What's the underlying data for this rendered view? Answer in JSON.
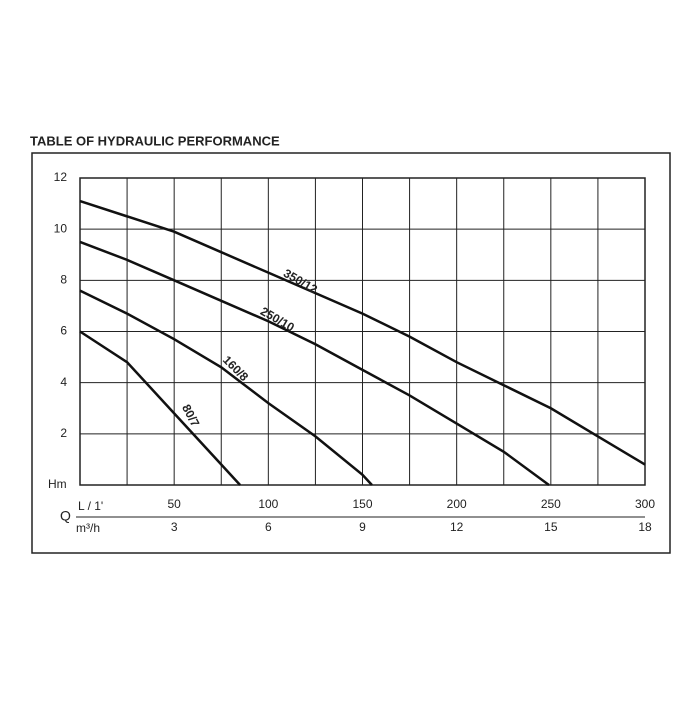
{
  "chart_data": {
    "type": "line",
    "title": "TABLE OF HYDRAULIC PERFORMANCE",
    "y_label": "Hm",
    "q_label": "Q",
    "x_label": "L / 1'",
    "x2_label": "m³/h",
    "xlim": [
      0,
      300
    ],
    "ylim": [
      0,
      12
    ],
    "xticks": [
      50,
      100,
      150,
      200,
      250,
      300
    ],
    "x2ticks": [
      {
        "value": 50,
        "label": "3"
      },
      {
        "value": 100,
        "label": "6"
      },
      {
        "value": 150,
        "label": "9"
      },
      {
        "value": 200,
        "label": "12"
      },
      {
        "value": 250,
        "label": "15"
      },
      {
        "value": 300,
        "label": "18"
      }
    ],
    "xgrid": [
      25,
      50,
      75,
      100,
      125,
      150,
      175,
      200,
      225,
      250,
      275
    ],
    "yticks": [
      2,
      4,
      6,
      8,
      10,
      12
    ],
    "series": [
      {
        "name": "350/12",
        "color": "#111",
        "x": [
          0,
          25,
          50,
          75,
          100,
          125,
          150,
          175,
          200,
          225,
          250,
          275,
          300
        ],
        "values": [
          11.1,
          10.5,
          9.9,
          9.1,
          8.3,
          7.5,
          6.7,
          5.8,
          4.8,
          3.9,
          3.0,
          1.9,
          0.8
        ]
      },
      {
        "name": "250/10",
        "color": "#111",
        "x": [
          0,
          25,
          50,
          75,
          100,
          125,
          150,
          175,
          200,
          225,
          249
        ],
        "values": [
          9.5,
          8.8,
          8.0,
          7.2,
          6.4,
          5.5,
          4.5,
          3.5,
          2.4,
          1.3,
          0
        ]
      },
      {
        "name": "160/8",
        "color": "#111",
        "x": [
          0,
          25,
          50,
          75,
          100,
          125,
          150,
          155
        ],
        "values": [
          7.6,
          6.7,
          5.7,
          4.6,
          3.2,
          1.9,
          0.4,
          0
        ]
      },
      {
        "name": "80/7",
        "color": "#111",
        "x": [
          0,
          25,
          50,
          75,
          85
        ],
        "values": [
          6.0,
          4.8,
          2.8,
          0.8,
          0
        ]
      }
    ]
  }
}
